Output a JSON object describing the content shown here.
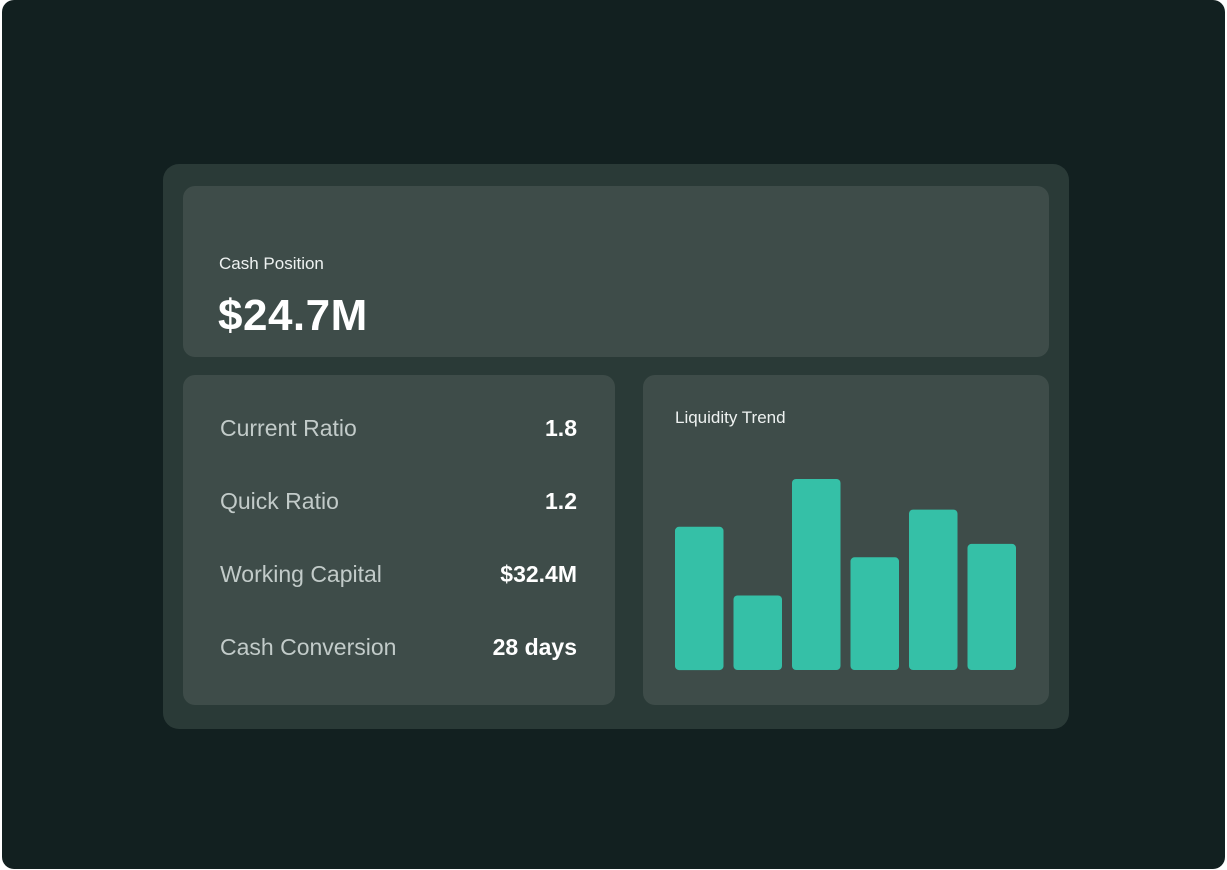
{
  "cash_position": {
    "label": "Cash Position",
    "value": "$24.7M"
  },
  "metrics": [
    {
      "label": "Current Ratio",
      "value": "1.8"
    },
    {
      "label": "Quick Ratio",
      "value": "1.2"
    },
    {
      "label": "Working Capital",
      "value": "$32.4M"
    },
    {
      "label": "Cash Conversion",
      "value": "28 days"
    }
  ],
  "liquidity_trend": {
    "title": "Liquidity Trend",
    "bar_color": "#35c0a7"
  },
  "chart_data": {
    "type": "bar",
    "title": "Liquidity Trend",
    "categories": [
      "",
      "",
      "",
      "",
      "",
      ""
    ],
    "values": [
      75,
      39,
      100,
      59,
      84,
      66
    ],
    "ylim": [
      0,
      100
    ],
    "grid": false,
    "axes_visible": false
  }
}
